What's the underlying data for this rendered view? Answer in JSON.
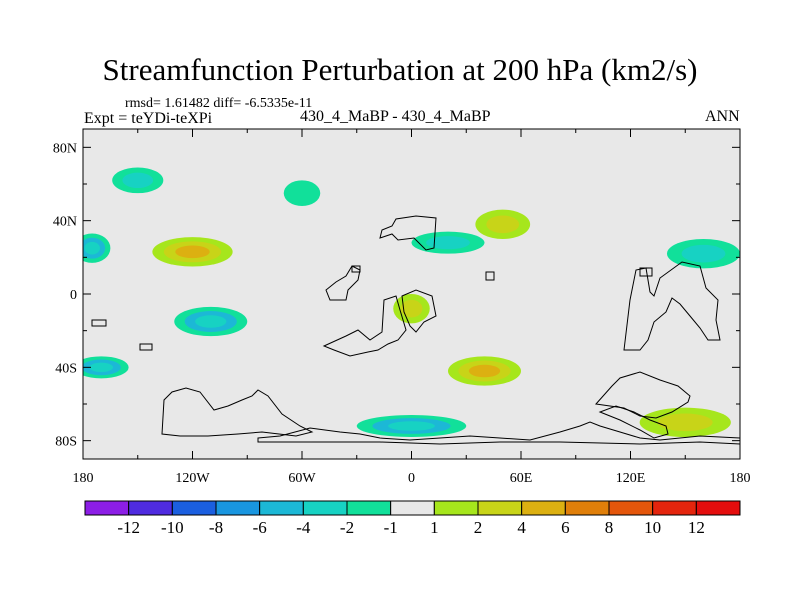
{
  "title": "Streamfunction Perturbation at 200 hPa (km2/s)",
  "stats_text": "rmsd= 1.61482 diff= -6.5335e-11",
  "left_label": "Expt = teYDi-teXPi",
  "center_label": "430_4_MaBP - 430_4_MaBP",
  "right_label": "ANN",
  "chart_data": {
    "type": "heatmap",
    "projection": "cylindrical-equidistant",
    "x_range": [
      -180,
      180
    ],
    "y_range": [
      -90,
      90
    ],
    "x_ticks": [
      {
        "value": -180,
        "label": "180"
      },
      {
        "value": -120,
        "label": "120W"
      },
      {
        "value": -60,
        "label": "60W"
      },
      {
        "value": 0,
        "label": "0"
      },
      {
        "value": 60,
        "label": "60E"
      },
      {
        "value": 120,
        "label": "120E"
      },
      {
        "value": 180,
        "label": "180"
      }
    ],
    "y_ticks": [
      {
        "value": 80,
        "label": "80N"
      },
      {
        "value": 40,
        "label": "40N"
      },
      {
        "value": 0,
        "label": "0"
      },
      {
        "value": -40,
        "label": "40S"
      },
      {
        "value": -80,
        "label": "80S"
      }
    ],
    "colorbar": {
      "levels": [
        "-12",
        "-10",
        "-8",
        "-6",
        "-4",
        "-2",
        "-1",
        "1",
        "2",
        "4",
        "6",
        "8",
        "10",
        "12"
      ],
      "colors": [
        "#8c1ee6",
        "#4f2be0",
        "#1b5fe0",
        "#1996e0",
        "#1cb8d6",
        "#17d2c3",
        "#11e09a",
        "#e8e8e8",
        "#a6e61c",
        "#c8d418",
        "#dcb011",
        "#e07f0a",
        "#e4560b",
        "#e4250d",
        "#e40d0d"
      ]
    },
    "features": [
      {
        "lon": -150,
        "lat": 62,
        "rx": 14,
        "ry": 7,
        "value": -2
      },
      {
        "lon": -60,
        "lat": 55,
        "rx": 10,
        "ry": 7,
        "value": -1
      },
      {
        "lon": -120,
        "lat": 23,
        "rx": 22,
        "ry": 8,
        "value": 4
      },
      {
        "lon": 20,
        "lat": 28,
        "rx": 20,
        "ry": 6,
        "value": -2
      },
      {
        "lon": 50,
        "lat": 38,
        "rx": 15,
        "ry": 8,
        "value": 2
      },
      {
        "lon": 160,
        "lat": 22,
        "rx": 20,
        "ry": 8,
        "value": -2
      },
      {
        "lon": -175,
        "lat": 25,
        "rx": 10,
        "ry": 8,
        "value": -4
      },
      {
        "lon": -110,
        "lat": -15,
        "rx": 20,
        "ry": 8,
        "value": -4
      },
      {
        "lon": 0,
        "lat": -8,
        "rx": 10,
        "ry": 8,
        "value": 2
      },
      {
        "lon": 40,
        "lat": -42,
        "rx": 20,
        "ry": 8,
        "value": 4
      },
      {
        "lon": -170,
        "lat": -40,
        "rx": 15,
        "ry": 6,
        "value": -4
      },
      {
        "lon": 150,
        "lat": -70,
        "rx": 25,
        "ry": 8,
        "value": 2
      },
      {
        "lon": 0,
        "lat": -72,
        "rx": 30,
        "ry": 6,
        "value": -4
      }
    ]
  }
}
